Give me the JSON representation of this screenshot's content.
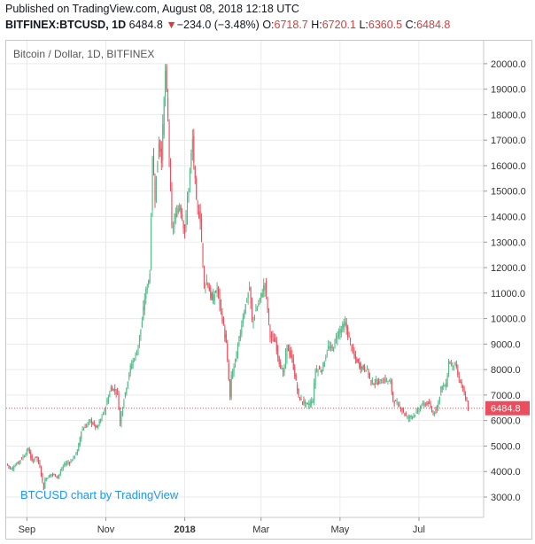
{
  "header": {
    "published": "Published on TradingView.com, August 08, 2018 12:18 UTC",
    "symbol": "BITFINEX:BTCUSD, 1D",
    "last": "6484.8",
    "change_arrow": "▼",
    "change": "−234.0 (−3.48%)",
    "o_label": "O:",
    "o_value": "6718.7",
    "h_label": "H:",
    "h_value": "6720.1",
    "l_label": "L:",
    "l_value": "6360.5",
    "c_label": "C:",
    "c_value": "6484.8"
  },
  "colors": {
    "up": "#53b987",
    "down": "#eb4d5c",
    "price_line": "#eb4d5c",
    "price_badge": "#eb4d5c",
    "grid": "#e9eaeb",
    "watermark": "#2196f3"
  },
  "chart_data": {
    "type": "candlestick",
    "title": "Bitcoin / Dollar, 1D, BITFINEX",
    "watermark": "BTCUSD chart by TradingView",
    "last_price": 6484.8,
    "last_price_label": "6484.8",
    "y_ticks": [
      3000,
      4000,
      5000,
      6000,
      7000,
      8000,
      9000,
      10000,
      11000,
      12000,
      13000,
      14000,
      15000,
      16000,
      17000,
      18000,
      19000,
      20000
    ],
    "y_tick_labels": [
      "3000.0",
      "4000.0",
      "5000.0",
      "6000.0",
      "7000.0",
      "8000.0",
      "9000.0",
      "10000.0",
      "11000.0",
      "12000.0",
      "13000.0",
      "14000.0",
      "15000.0",
      "16000.0",
      "17000.0",
      "18000.0",
      "19000.0",
      "20000.0"
    ],
    "ylim": [
      2200,
      20900
    ],
    "x_ticks": [
      "2017-09-01",
      "2017-11-01",
      "2018-01-01",
      "2018-03-01",
      "2018-05-01",
      "2018-07-01"
    ],
    "x_tick_labels": [
      "Sep",
      "Nov",
      "2018",
      "Mar",
      "May",
      "Jul"
    ],
    "xlim": [
      "2017-08-16",
      "2018-08-20"
    ],
    "series_close": [
      [
        "2017-08-16",
        4300
      ],
      [
        "2017-08-20",
        4100
      ],
      [
        "2017-08-25",
        4350
      ],
      [
        "2017-08-31",
        4700
      ],
      [
        "2017-09-02",
        4900
      ],
      [
        "2017-09-05",
        4400
      ],
      [
        "2017-09-08",
        4600
      ],
      [
        "2017-09-11",
        4200
      ],
      [
        "2017-09-14",
        3300
      ],
      [
        "2017-09-15",
        3700
      ],
      [
        "2017-09-20",
        3900
      ],
      [
        "2017-09-25",
        3800
      ],
      [
        "2017-09-30",
        4300
      ],
      [
        "2017-10-05",
        4400
      ],
      [
        "2017-10-10",
        4800
      ],
      [
        "2017-10-13",
        5600
      ],
      [
        "2017-10-20",
        6000
      ],
      [
        "2017-10-25",
        5700
      ],
      [
        "2017-10-31",
        6400
      ],
      [
        "2017-11-05",
        7300
      ],
      [
        "2017-11-10",
        7100
      ],
      [
        "2017-11-12",
        5900
      ],
      [
        "2017-11-14",
        6600
      ],
      [
        "2017-11-20",
        8100
      ],
      [
        "2017-11-25",
        8700
      ],
      [
        "2017-11-29",
        9900
      ],
      [
        "2017-12-01",
        10800
      ],
      [
        "2017-12-05",
        11800
      ],
      [
        "2017-12-07",
        16400
      ],
      [
        "2017-12-09",
        14800
      ],
      [
        "2017-12-12",
        17000
      ],
      [
        "2017-12-14",
        16300
      ],
      [
        "2017-12-17",
        19700
      ],
      [
        "2017-12-19",
        17800
      ],
      [
        "2017-12-22",
        13500
      ],
      [
        "2017-12-25",
        14000
      ],
      [
        "2017-12-28",
        14500
      ],
      [
        "2018-01-01",
        13400
      ],
      [
        "2018-01-04",
        15200
      ],
      [
        "2018-01-07",
        17000
      ],
      [
        "2018-01-10",
        14500
      ],
      [
        "2018-01-13",
        13900
      ],
      [
        "2018-01-16",
        11300
      ],
      [
        "2018-01-18",
        11500
      ],
      [
        "2018-01-22",
        10700
      ],
      [
        "2018-01-26",
        11200
      ],
      [
        "2018-01-30",
        10000
      ],
      [
        "2018-02-02",
        9000
      ],
      [
        "2018-02-05",
        6900
      ],
      [
        "2018-02-06",
        7700
      ],
      [
        "2018-02-10",
        8600
      ],
      [
        "2018-02-15",
        10100
      ],
      [
        "2018-02-20",
        11200
      ],
      [
        "2018-02-22",
        9900
      ],
      [
        "2018-02-27",
        10600
      ],
      [
        "2018-03-04",
        11400
      ],
      [
        "2018-03-08",
        9300
      ],
      [
        "2018-03-12",
        9100
      ],
      [
        "2018-03-15",
        8300
      ],
      [
        "2018-03-18",
        7800
      ],
      [
        "2018-03-21",
        8900
      ],
      [
        "2018-03-25",
        8400
      ],
      [
        "2018-03-30",
        6900
      ],
      [
        "2018-04-01",
        6800
      ],
      [
        "2018-04-06",
        6600
      ],
      [
        "2018-04-10",
        6800
      ],
      [
        "2018-04-12",
        8000
      ],
      [
        "2018-04-17",
        8000
      ],
      [
        "2018-04-22",
        8900
      ],
      [
        "2018-04-25",
        8800
      ],
      [
        "2018-04-29",
        9400
      ],
      [
        "2018-05-05",
        9800
      ],
      [
        "2018-05-08",
        9200
      ],
      [
        "2018-05-12",
        8500
      ],
      [
        "2018-05-17",
        8100
      ],
      [
        "2018-05-22",
        8000
      ],
      [
        "2018-05-25",
        7500
      ],
      [
        "2018-05-30",
        7500
      ],
      [
        "2018-06-05",
        7600
      ],
      [
        "2018-06-09",
        7500
      ],
      [
        "2018-06-11",
        6800
      ],
      [
        "2018-06-17",
        6500
      ],
      [
        "2018-06-22",
        6100
      ],
      [
        "2018-06-24",
        6150
      ],
      [
        "2018-06-29",
        6300
      ],
      [
        "2018-07-03",
        6600
      ],
      [
        "2018-07-08",
        6700
      ],
      [
        "2018-07-12",
        6250
      ],
      [
        "2018-07-16",
        6700
      ],
      [
        "2018-07-18",
        7300
      ],
      [
        "2018-07-22",
        7400
      ],
      [
        "2018-07-24",
        8300
      ],
      [
        "2018-07-26",
        8200
      ],
      [
        "2018-07-29",
        8200
      ],
      [
        "2018-08-01",
        7600
      ],
      [
        "2018-08-03",
        7400
      ],
      [
        "2018-08-05",
        7000
      ],
      [
        "2018-08-07",
        6700
      ],
      [
        "2018-08-08",
        6484.8
      ]
    ],
    "grid": true,
    "y_axis_position": "right",
    "legend": "none"
  }
}
